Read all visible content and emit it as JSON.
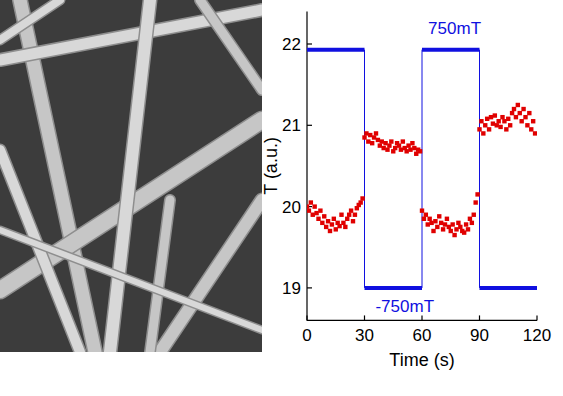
{
  "chart_data": {
    "type": "scatter",
    "xlabel": "Time (s)",
    "ylabel": "T (a.u.)",
    "xlim": [
      0,
      120
    ],
    "ylim": [
      18.6,
      22.4
    ],
    "xticks": [
      0,
      30,
      60,
      90,
      120
    ],
    "yticks": [
      19,
      20,
      21,
      22
    ],
    "grid": false,
    "annotations": [
      {
        "text": "750mT",
        "x": 77,
        "y": 22.12
      },
      {
        "text": "-750mT",
        "x": 51,
        "y": 18.7
      }
    ],
    "series": [
      {
        "type": "line",
        "color": "#1010e0",
        "line_style": "solid",
        "x": [
          0,
          30,
          30,
          60,
          60,
          90,
          90,
          120
        ],
        "values": [
          21.93,
          21.93,
          19,
          19,
          21.93,
          21.93,
          19,
          19
        ]
      },
      {
        "type": "scatter",
        "color": "#e00000",
        "marker": "square",
        "x": [
          0,
          1,
          2,
          3,
          4,
          5,
          6,
          7,
          8,
          9,
          10,
          11,
          12,
          13,
          14,
          15,
          16,
          17,
          18,
          19,
          20,
          21,
          22,
          23,
          24,
          25,
          26,
          27,
          28,
          29,
          30,
          31,
          32,
          33,
          34,
          35,
          36,
          37,
          38,
          39,
          40,
          41,
          42,
          43,
          44,
          45,
          46,
          47,
          48,
          49,
          50,
          51,
          52,
          53,
          54,
          55,
          56,
          57,
          58,
          59,
          60,
          61,
          62,
          63,
          64,
          65,
          66,
          67,
          68,
          69,
          70,
          71,
          72,
          73,
          74,
          75,
          76,
          77,
          78,
          79,
          80,
          81,
          82,
          83,
          84,
          85,
          86,
          87,
          88,
          89,
          90,
          91,
          92,
          93,
          94,
          95,
          96,
          97,
          98,
          99,
          100,
          101,
          102,
          103,
          104,
          105,
          106,
          107,
          108,
          109,
          110,
          111,
          112,
          113,
          114,
          115,
          116,
          117,
          118,
          119
        ],
        "values": [
          20.0,
          19.95,
          20.05,
          19.9,
          20.0,
          19.92,
          19.85,
          19.95,
          19.8,
          19.88,
          19.75,
          19.82,
          19.7,
          19.78,
          19.85,
          19.72,
          19.8,
          19.76,
          19.9,
          19.8,
          19.75,
          19.85,
          19.9,
          19.95,
          19.82,
          19.9,
          19.98,
          20.02,
          20.05,
          20.1,
          20.85,
          20.9,
          20.8,
          20.88,
          20.78,
          20.85,
          20.9,
          20.82,
          20.75,
          20.8,
          20.72,
          20.78,
          20.7,
          20.75,
          20.8,
          20.68,
          20.72,
          20.78,
          20.75,
          20.7,
          20.8,
          20.72,
          20.68,
          20.75,
          20.7,
          20.78,
          20.72,
          20.65,
          20.7,
          20.68,
          19.95,
          19.85,
          19.9,
          19.78,
          19.85,
          19.8,
          19.7,
          19.82,
          19.75,
          19.88,
          19.8,
          19.72,
          19.78,
          19.85,
          19.75,
          19.7,
          19.78,
          19.65,
          19.72,
          19.8,
          19.75,
          19.7,
          19.68,
          19.78,
          19.72,
          19.85,
          19.8,
          19.9,
          20.05,
          20.15,
          20.95,
          21.05,
          20.9,
          21.0,
          21.08,
          20.95,
          21.1,
          21.02,
          21.12,
          21.0,
          21.05,
          20.98,
          21.1,
          21.05,
          20.95,
          21.08,
          21.0,
          21.15,
          21.2,
          21.1,
          21.25,
          21.15,
          21.05,
          21.2,
          21.1,
          21.0,
          21.15,
          20.95,
          21.05,
          20.9
        ]
      }
    ]
  }
}
